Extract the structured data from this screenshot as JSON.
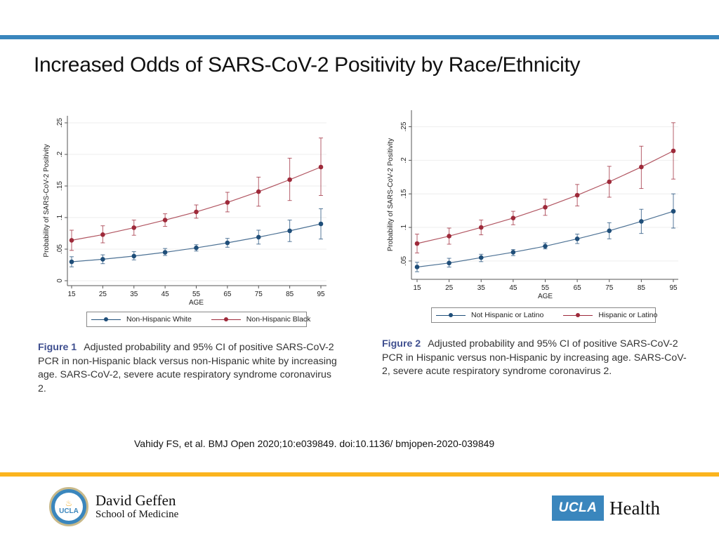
{
  "slide": {
    "title": "Increased Odds of SARS-CoV-2 Positivity by Race/Ethnicity",
    "citation": "Vahidy FS, et al. BMJ Open 2020;10:e039849. doi:10.1136/ bmjopen-2020-039849",
    "colors": {
      "top_bar": "#3a86bd",
      "bottom_bar": "#fbb41e",
      "series_blue": "#1f4e79",
      "series_red": "#9e2a3a"
    }
  },
  "logos": {
    "left": {
      "seal_text": "UCLA",
      "line1": "David Geffen",
      "line2": "School of Medicine"
    },
    "right": {
      "box_text": "UCLA",
      "text": "Health"
    }
  },
  "figure1": {
    "caption_label": "Figure 1",
    "caption_text": "Adjusted probability and 95% CI of positive SARS-CoV-2 PCR in non-Hispanic black versus non-Hispanic white by increasing age. SARS-CoV-2, severe acute respiratory syndrome coronavirus 2.",
    "legend": [
      "Non-Hispanic White",
      "Non-Hispanic Black"
    ]
  },
  "figure2": {
    "caption_label": "Figure 2",
    "caption_text": "Adjusted probability and 95% CI of positive SARS-CoV-2 PCR in Hispanic versus non-Hispanic by increasing age. SARS-CoV-2, severe acute respiratory syndrome coronavirus 2.",
    "legend": [
      "Not Hispanic or Latino",
      "Hispanic or Latino"
    ]
  },
  "chart_data": [
    {
      "type": "line",
      "title": "",
      "xlabel": "AGE",
      "ylabel": "Probability of SARS-CoV-2 Positivity",
      "x": [
        15,
        25,
        35,
        45,
        55,
        65,
        75,
        85,
        95
      ],
      "x_ticks": [
        "15",
        "25",
        "35",
        "45",
        "55",
        "65",
        "75",
        "85",
        "95"
      ],
      "y_ticks": [
        0,
        0.05,
        0.1,
        0.15,
        0.2,
        0.25
      ],
      "y_tick_labels": [
        "0",
        ".05",
        ".1",
        ".15",
        ".2",
        ".25"
      ],
      "ylim": [
        0,
        0.25
      ],
      "grid": true,
      "legend_position": "bottom",
      "series": [
        {
          "name": "Non-Hispanic White",
          "color": "#1f4e79",
          "values": [
            0.03,
            0.034,
            0.039,
            0.045,
            0.052,
            0.06,
            0.069,
            0.079,
            0.09
          ],
          "ci_low": [
            0.022,
            0.027,
            0.033,
            0.04,
            0.047,
            0.053,
            0.058,
            0.062,
            0.066
          ],
          "ci_high": [
            0.038,
            0.041,
            0.046,
            0.051,
            0.057,
            0.067,
            0.08,
            0.096,
            0.114
          ]
        },
        {
          "name": "Non-Hispanic Black",
          "color": "#9e2a3a",
          "values": [
            0.064,
            0.073,
            0.084,
            0.096,
            0.109,
            0.124,
            0.141,
            0.16,
            0.18
          ],
          "ci_low": [
            0.048,
            0.06,
            0.072,
            0.086,
            0.099,
            0.109,
            0.118,
            0.127,
            0.135
          ],
          "ci_high": [
            0.08,
            0.087,
            0.096,
            0.106,
            0.12,
            0.14,
            0.164,
            0.194,
            0.226
          ]
        }
      ]
    },
    {
      "type": "line",
      "title": "",
      "xlabel": "AGE",
      "ylabel": "Probability of SARS-CoV-2 Positivity",
      "x": [
        15,
        25,
        35,
        45,
        55,
        65,
        75,
        85,
        95
      ],
      "x_ticks": [
        "15",
        "25",
        "35",
        "45",
        "55",
        "65",
        "75",
        "85",
        "95"
      ],
      "y_ticks": [
        0.05,
        0.1,
        0.15,
        0.2,
        0.25
      ],
      "y_tick_labels": [
        ".05",
        ".1",
        ".15",
        ".2",
        ".25"
      ],
      "ylim": [
        0.03,
        0.26
      ],
      "grid": true,
      "legend_position": "bottom",
      "series": [
        {
          "name": "Not Hispanic or Latino",
          "color": "#1f4e79",
          "values": [
            0.041,
            0.047,
            0.055,
            0.063,
            0.072,
            0.083,
            0.095,
            0.109,
            0.124
          ],
          "ci_low": [
            0.034,
            0.041,
            0.049,
            0.058,
            0.068,
            0.076,
            0.083,
            0.091,
            0.099
          ],
          "ci_high": [
            0.048,
            0.054,
            0.06,
            0.067,
            0.077,
            0.09,
            0.107,
            0.127,
            0.15
          ]
        },
        {
          "name": "Hispanic or Latino",
          "color": "#9e2a3a",
          "values": [
            0.076,
            0.087,
            0.1,
            0.114,
            0.13,
            0.148,
            0.168,
            0.19,
            0.214
          ],
          "ci_low": [
            0.062,
            0.075,
            0.089,
            0.104,
            0.118,
            0.132,
            0.145,
            0.158,
            0.172
          ],
          "ci_high": [
            0.09,
            0.099,
            0.111,
            0.124,
            0.142,
            0.164,
            0.191,
            0.221,
            0.256
          ]
        }
      ]
    }
  ]
}
